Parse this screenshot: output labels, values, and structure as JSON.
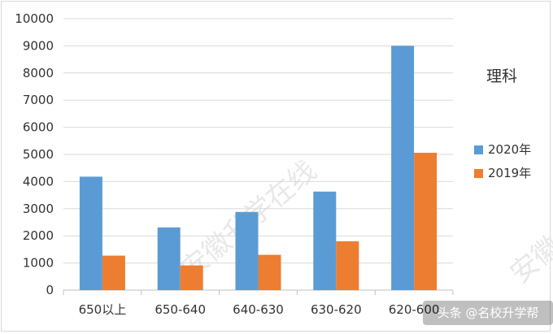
{
  "chart_data": {
    "type": "bar",
    "categories": [
      "650以上",
      "650-640",
      "640-630",
      "630-620",
      "620-600"
    ],
    "series": [
      {
        "name": "2020年",
        "values": [
          4180,
          2310,
          2880,
          3630,
          9000
        ],
        "color": "#5b9bd5"
      },
      {
        "name": "2019年",
        "values": [
          1270,
          910,
          1300,
          1800,
          5060
        ],
        "color": "#ed7d31"
      }
    ],
    "title": "",
    "legend_title": "理科",
    "legend_position": "right",
    "xlabel": "",
    "ylabel": "",
    "ylim": [
      0,
      10000
    ],
    "yticks": [
      0,
      1000,
      2000,
      3000,
      4000,
      5000,
      6000,
      7000,
      8000,
      9000,
      10000
    ],
    "grid": true
  },
  "watermark": {
    "text_main": "安徽升学在线",
    "text_side": "安徽"
  },
  "credit": "头条 @名校升学帮"
}
